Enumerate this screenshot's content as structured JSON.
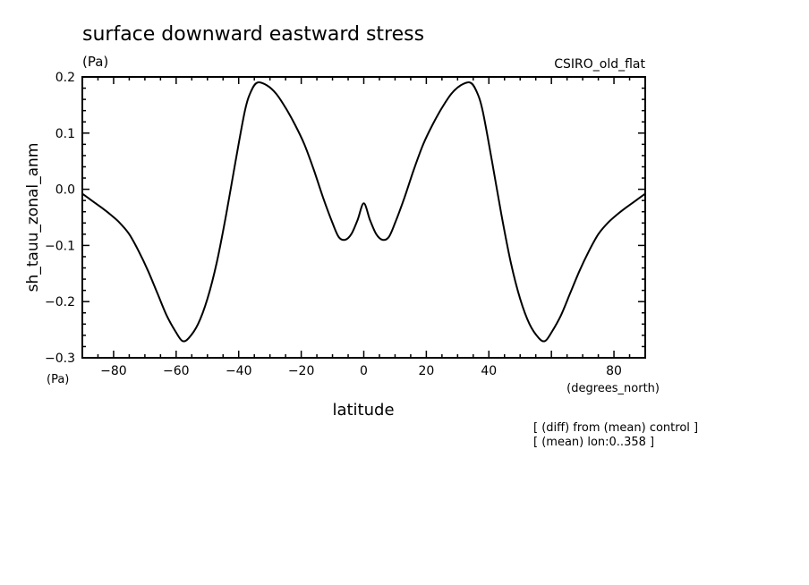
{
  "chart_data": {
    "type": "line",
    "title": "surface downward eastward stress",
    "units_label": "(Pa)",
    "units_label_bottom": "(Pa)",
    "model_label": "CSIRO_old_flat",
    "ylabel": "sh_tauu_zonal_anm",
    "xlabel": "latitude",
    "xunits": "(degrees_north)",
    "notes": [
      "[ (diff) from (mean) control ]",
      "[ (mean) lon:0..358 ]"
    ],
    "xlim": [
      -90,
      90
    ],
    "ylim": [
      -0.3,
      0.2
    ],
    "xticks": [
      -80,
      -60,
      -40,
      -20,
      0,
      20,
      40,
      80
    ],
    "xtick_labels": [
      "−80",
      "−60",
      "−40",
      "−20",
      "0",
      "20",
      "40",
      "80"
    ],
    "yticks": [
      0.2,
      0.1,
      0.0,
      -0.1,
      -0.2,
      -0.3
    ],
    "ytick_labels": [
      "0.2",
      "0.1",
      "0.0",
      "−0.1",
      "−0.2",
      "−0.3"
    ],
    "series": [
      {
        "x": [
          -90,
          -87,
          -84,
          -81,
          -78,
          -75,
          -72,
          -69,
          -66,
          -63,
          -60,
          -58,
          -56,
          -53,
          -50,
          -47,
          -44,
          -41,
          -38,
          -36,
          -34,
          -31,
          -28,
          -25,
          -22,
          -19,
          -16,
          -13,
          -10,
          -8,
          -6,
          -4,
          -2,
          0,
          2,
          4,
          6,
          8,
          10,
          13,
          16,
          19,
          22,
          25,
          28,
          31,
          34,
          36,
          38,
          41,
          44,
          47,
          50,
          53,
          56,
          58,
          60,
          63,
          66,
          69,
          72,
          75,
          78,
          81,
          84,
          87,
          90
        ],
        "y": [
          -0.008,
          -0.02,
          -0.032,
          -0.045,
          -0.06,
          -0.08,
          -0.11,
          -0.145,
          -0.185,
          -0.225,
          -0.255,
          -0.27,
          -0.265,
          -0.24,
          -0.195,
          -0.13,
          -0.045,
          0.05,
          0.14,
          0.175,
          0.19,
          0.185,
          0.17,
          0.145,
          0.115,
          0.08,
          0.035,
          -0.015,
          -0.06,
          -0.085,
          -0.09,
          -0.08,
          -0.055,
          -0.025,
          -0.055,
          -0.08,
          -0.09,
          -0.085,
          -0.06,
          -0.015,
          0.035,
          0.08,
          0.115,
          0.145,
          0.17,
          0.185,
          0.19,
          0.175,
          0.14,
          0.05,
          -0.045,
          -0.13,
          -0.195,
          -0.24,
          -0.265,
          -0.27,
          -0.255,
          -0.225,
          -0.185,
          -0.145,
          -0.11,
          -0.08,
          -0.06,
          -0.045,
          -0.032,
          -0.02,
          -0.008
        ]
      }
    ]
  }
}
